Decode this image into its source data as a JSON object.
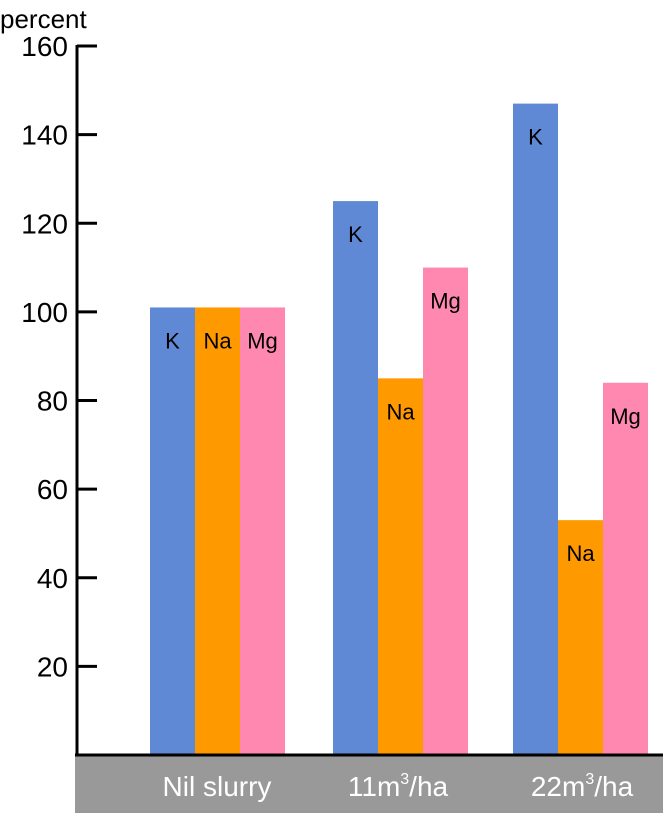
{
  "chart_data": {
    "type": "bar",
    "ylabel": "percent",
    "ylim": [
      0,
      160
    ],
    "yticks": [
      20,
      40,
      60,
      80,
      100,
      120,
      140,
      160
    ],
    "grid": false,
    "legend": "none",
    "categories": [
      {
        "base": "Nil slurry",
        "sup": "",
        "tail": ""
      },
      {
        "base": "11m",
        "sup": "3",
        "tail": "/ha"
      },
      {
        "base": "22m",
        "sup": "3",
        "tail": "/ha"
      }
    ],
    "series": [
      {
        "label": "K",
        "color": "#6089d5",
        "values": [
          101,
          125,
          147
        ]
      },
      {
        "label": "Na",
        "color": "#ff9900",
        "values": [
          101,
          85,
          53
        ]
      },
      {
        "label": "Mg",
        "color": "#ff88b0",
        "values": [
          101,
          110,
          84
        ]
      }
    ],
    "category_band_color": "#999999",
    "category_text_color": "#ffffff"
  }
}
